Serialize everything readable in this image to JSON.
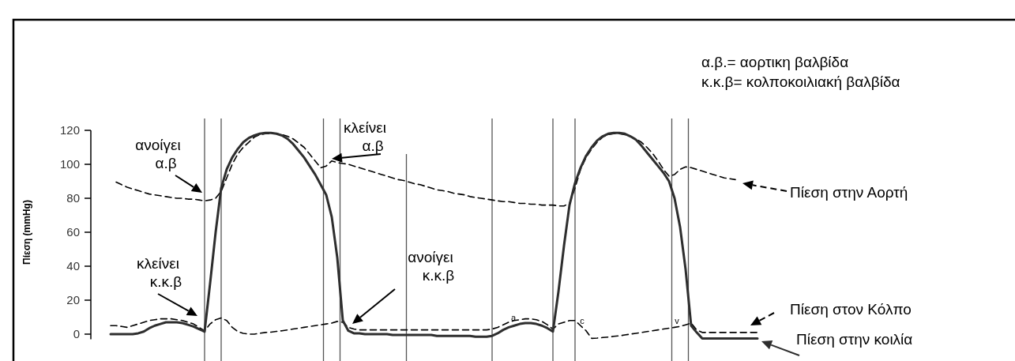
{
  "chart_data": {
    "type": "line",
    "ylabel": "Πίεση (mmHg)",
    "ylim": [
      -3,
      120
    ],
    "yticks": [
      0,
      20,
      40,
      60,
      80,
      100,
      120
    ],
    "tick_labels": "y",
    "legend": "right",
    "grid": "x",
    "categories": [
      null,
      null,
      null,
      null,
      null,
      null,
      null,
      null,
      null,
      null,
      null,
      null,
      null,
      null,
      null,
      null,
      null,
      null,
      null,
      null,
      null,
      null,
      null,
      null,
      null,
      null,
      null,
      null,
      null,
      null,
      null,
      null,
      null,
      null,
      null,
      null,
      null,
      null,
      null,
      null,
      null,
      null,
      null,
      null,
      null,
      null,
      null,
      null,
      null,
      null,
      null,
      null,
      null,
      null,
      null,
      null,
      null,
      null,
      null,
      null,
      null,
      null,
      null,
      null,
      null,
      null,
      null,
      null,
      null,
      null,
      null,
      null,
      null,
      null,
      null,
      null,
      null,
      null,
      null,
      null,
      null,
      null,
      null,
      null,
      null,
      null,
      null,
      null,
      null,
      null,
      null,
      null,
      null,
      null,
      null,
      null,
      null,
      null,
      null,
      null,
      null,
      null,
      null,
      null,
      null,
      null,
      null,
      null,
      null,
      null,
      null,
      null,
      null,
      null,
      null,
      null,
      null,
      null
    ],
    "series": [
      {
        "name": "Πίεση στην Αορτή",
        "color": "#000000",
        "line_style": "dashed",
        "values": [
          null,
          89.5,
          88,
          86.5,
          85.5,
          84.5,
          83.5,
          82.5,
          82,
          81.5,
          81,
          80.5,
          80,
          80,
          79.5,
          79.5,
          79,
          78.5,
          79,
          80,
          84,
          92,
          100,
          106,
          110,
          113,
          116,
          117.5,
          118,
          118,
          118,
          117.5,
          116.5,
          115,
          112.5,
          110,
          106,
          102,
          98,
          99,
          102,
          101,
          100.5,
          100,
          99,
          98,
          97,
          96,
          95,
          94,
          93,
          92,
          91,
          90.5,
          89.5,
          88.5,
          88,
          87,
          86,
          85,
          84.5,
          84,
          83,
          82.5,
          82,
          81,
          80.5,
          80,
          79.5,
          79,
          78.5,
          78,
          78,
          77.5,
          77,
          77,
          76.5,
          76.5,
          76,
          76,
          76,
          75.5,
          75.5,
          77,
          86,
          97,
          104,
          109,
          113,
          116,
          117.5,
          118,
          118,
          117.5,
          116.5,
          115,
          113,
          110,
          106.5,
          102,
          97,
          93,
          94,
          97,
          98.5,
          98,
          97,
          96,
          95,
          94,
          93,
          92,
          91.5,
          91,
          null,
          null,
          null,
          null
        ]
      },
      {
        "name": "Πίεση στον Κόλπο",
        "color": "#000000",
        "line_style": "dashed",
        "values": [
          5,
          5,
          4.5,
          4,
          5,
          6,
          7,
          8,
          8.5,
          9,
          9,
          9,
          8.5,
          8,
          7,
          6,
          4,
          2,
          6,
          8.5,
          9.5,
          8,
          4,
          1.5,
          0.5,
          0,
          0,
          0.5,
          1,
          1.2,
          1.6,
          2,
          2.5,
          3,
          3.5,
          4,
          4.5,
          5,
          5.5,
          6,
          6.5,
          7.5,
          7,
          4,
          3,
          2.5,
          2.5,
          2.5,
          2.5,
          2.5,
          2.5,
          2.5,
          2.5,
          2.5,
          2.5,
          2.5,
          2.5,
          2.5,
          2.5,
          2.5,
          2.5,
          2.5,
          2.5,
          2.5,
          2.5,
          2.5,
          2.5,
          2.5,
          2.5,
          3,
          4,
          5.5,
          7,
          8,
          8.5,
          9,
          9,
          8.5,
          7.5,
          5.5,
          3,
          6,
          7,
          8,
          8,
          5,
          2,
          -2.5,
          -2.3,
          -2,
          -1.7,
          -1.3,
          -1,
          -0.5,
          0,
          0.5,
          1,
          1.5,
          2,
          2.5,
          3,
          3.5,
          4,
          4.5,
          5.5,
          6.5,
          2.5,
          1,
          1,
          1,
          1,
          1,
          1,
          1,
          1,
          1,
          1,
          1
        ]
      },
      {
        "name": "Πίεση στην κοιλία",
        "color": "#2e2e2e",
        "line_style": "solid",
        "values": [
          0,
          0,
          0,
          0,
          0,
          0.5,
          1.5,
          3.5,
          5,
          6,
          7,
          7,
          7,
          6.5,
          5.5,
          4.5,
          3,
          1.5,
          30,
          60,
          86,
          97,
          104,
          109,
          113,
          115.5,
          117,
          118,
          118.5,
          118.5,
          118,
          117,
          115,
          112,
          108,
          104,
          99,
          94,
          88,
          82,
          69,
          45,
          8,
          2,
          0.5,
          0.5,
          0,
          0,
          0,
          0,
          0,
          -0.5,
          -0.5,
          -0.5,
          -0.5,
          -0.5,
          -0.5,
          -0.5,
          -0.5,
          -1,
          -1,
          -1,
          -1,
          -1,
          -1,
          -1,
          -1.5,
          -1.5,
          -1.5,
          -1,
          0.5,
          2.5,
          4,
          5,
          6,
          6.5,
          6.5,
          6,
          5,
          3.5,
          1.5,
          25,
          52,
          76,
          89,
          98,
          105,
          110,
          114,
          116.5,
          118,
          118.5,
          118.5,
          118,
          116.5,
          114.5,
          111,
          107,
          103,
          99,
          95,
          90,
          80,
          63,
          38,
          5,
          1,
          -2.5,
          -2.5,
          -2.5,
          -2.5,
          -2.5,
          -2.5,
          -2.5,
          -2.5,
          -2.5,
          -2.5,
          -2.5
        ]
      }
    ],
    "annotations": [
      "ανοίγει\nα.β",
      "κλείνει\nα.β",
      "κλείνει\nκ.κ.β",
      "ανοίγει\nκ.κ.β",
      "α.β.= αορτικη βαλβίδα",
      "κ.κ.β= κολποκοιλιακή βαλβίδα",
      "a",
      "c",
      "v"
    ]
  }
}
